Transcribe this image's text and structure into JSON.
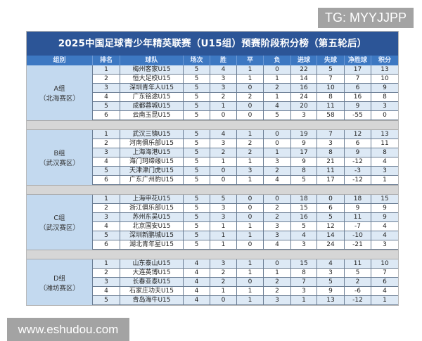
{
  "watermarks": {
    "top": "TG: MYYJJPP",
    "bottom": "www.eshudou.com"
  },
  "title": "2025中国足球青少年精英联赛（U15组）预赛阶段积分榜（第五轮后）",
  "headers": [
    "组别",
    "排名",
    "球队",
    "场次",
    "胜",
    "平",
    "负",
    "进球",
    "失球",
    "净胜球",
    "积分"
  ],
  "colors": {
    "title_bg": "#2c5597",
    "header_bg": "#3d78c2",
    "group_bg": "#c3d9ef",
    "row_alt": "#dde9f5"
  },
  "groups": [
    {
      "name": "A组",
      "region": "（北海赛区）",
      "rows": [
        [
          "1",
          "梅州客家U15",
          "5",
          "4",
          "1",
          "0",
          "22",
          "5",
          "17",
          "13"
        ],
        [
          "2",
          "恒大足校U15",
          "5",
          "3",
          "1",
          "1",
          "14",
          "7",
          "7",
          "10"
        ],
        [
          "3",
          "深圳青年人U15",
          "5",
          "3",
          "0",
          "2",
          "16",
          "10",
          "6",
          "9"
        ],
        [
          "4",
          "广东铭途U15",
          "5",
          "2",
          "2",
          "1",
          "24",
          "8",
          "16",
          "8"
        ],
        [
          "5",
          "成都蓉城U15",
          "5",
          "1",
          "0",
          "4",
          "20",
          "11",
          "9",
          "3"
        ],
        [
          "6",
          "云南玉昆U15",
          "5",
          "0",
          "0",
          "5",
          "3",
          "58",
          "-55",
          "0"
        ]
      ]
    },
    {
      "name": "B组",
      "region": "（武汉赛区）",
      "rows": [
        [
          "1",
          "武汉三镇U15",
          "5",
          "4",
          "1",
          "0",
          "19",
          "7",
          "12",
          "13"
        ],
        [
          "2",
          "河南俱乐部U15",
          "5",
          "3",
          "2",
          "0",
          "9",
          "3",
          "6",
          "11"
        ],
        [
          "3",
          "上海海港U15",
          "5",
          "2",
          "2",
          "1",
          "17",
          "8",
          "9",
          "8"
        ],
        [
          "4",
          "海门珂缔缘U15",
          "5",
          "1",
          "1",
          "3",
          "9",
          "21",
          "-12",
          "4"
        ],
        [
          "5",
          "天津津门虎U15",
          "5",
          "0",
          "3",
          "2",
          "8",
          "11",
          "-3",
          "3"
        ],
        [
          "6",
          "广东广州豹U15",
          "5",
          "0",
          "1",
          "4",
          "5",
          "17",
          "-12",
          "1"
        ]
      ]
    },
    {
      "name": "C组",
      "region": "（武汉赛区）",
      "rows": [
        [
          "1",
          "上海申花U15",
          "5",
          "5",
          "0",
          "0",
          "18",
          "0",
          "18",
          "15"
        ],
        [
          "2",
          "浙江俱乐部U15",
          "5",
          "3",
          "0",
          "2",
          "15",
          "6",
          "9",
          "9"
        ],
        [
          "3",
          "苏州东吴U15",
          "5",
          "3",
          "0",
          "2",
          "16",
          "5",
          "11",
          "9"
        ],
        [
          "4",
          "北京国安U15",
          "5",
          "1",
          "1",
          "3",
          "5",
          "12",
          "-7",
          "4"
        ],
        [
          "5",
          "深圳新鹏城U15",
          "5",
          "1",
          "1",
          "3",
          "4",
          "14",
          "-10",
          "4"
        ],
        [
          "6",
          "湖北青年星U15",
          "5",
          "1",
          "0",
          "4",
          "3",
          "24",
          "-21",
          "3"
        ]
      ]
    },
    {
      "name": "D组",
      "region": "（潍坊赛区）",
      "rows": [
        [
          "1",
          "山东泰山U15",
          "4",
          "3",
          "1",
          "0",
          "15",
          "4",
          "11",
          "10"
        ],
        [
          "2",
          "大连英博U15",
          "4",
          "2",
          "1",
          "1",
          "8",
          "3",
          "5",
          "7"
        ],
        [
          "3",
          "长春亚泰U15",
          "4",
          "2",
          "0",
          "2",
          "7",
          "5",
          "2",
          "6"
        ],
        [
          "4",
          "石家庄功夫U15",
          "4",
          "1",
          "1",
          "2",
          "3",
          "9",
          "-6",
          "4"
        ],
        [
          "5",
          "青岛海牛U15",
          "4",
          "0",
          "1",
          "3",
          "1",
          "13",
          "-12",
          "1"
        ]
      ]
    }
  ]
}
